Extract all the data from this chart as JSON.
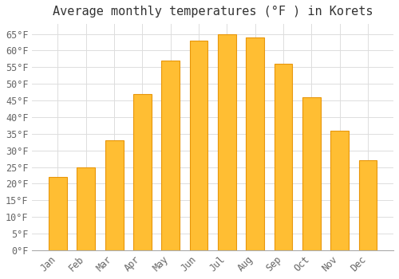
{
  "title": "Average monthly temperatures (°F ) in Korets",
  "months": [
    "Jan",
    "Feb",
    "Mar",
    "Apr",
    "May",
    "Jun",
    "Jul",
    "Aug",
    "Sep",
    "Oct",
    "Nov",
    "Dec"
  ],
  "values": [
    22,
    25,
    33,
    47,
    57,
    63,
    65,
    64,
    56,
    46,
    36,
    27
  ],
  "bar_color": "#FFBE33",
  "bar_edge_color": "#E8960A",
  "background_color": "#FFFFFF",
  "grid_color": "#DDDDDD",
  "ylim": [
    0,
    68
  ],
  "yticks": [
    0,
    5,
    10,
    15,
    20,
    25,
    30,
    35,
    40,
    45,
    50,
    55,
    60,
    65
  ],
  "title_fontsize": 11,
  "tick_fontsize": 8.5,
  "font_family": "monospace",
  "bar_width": 0.65
}
